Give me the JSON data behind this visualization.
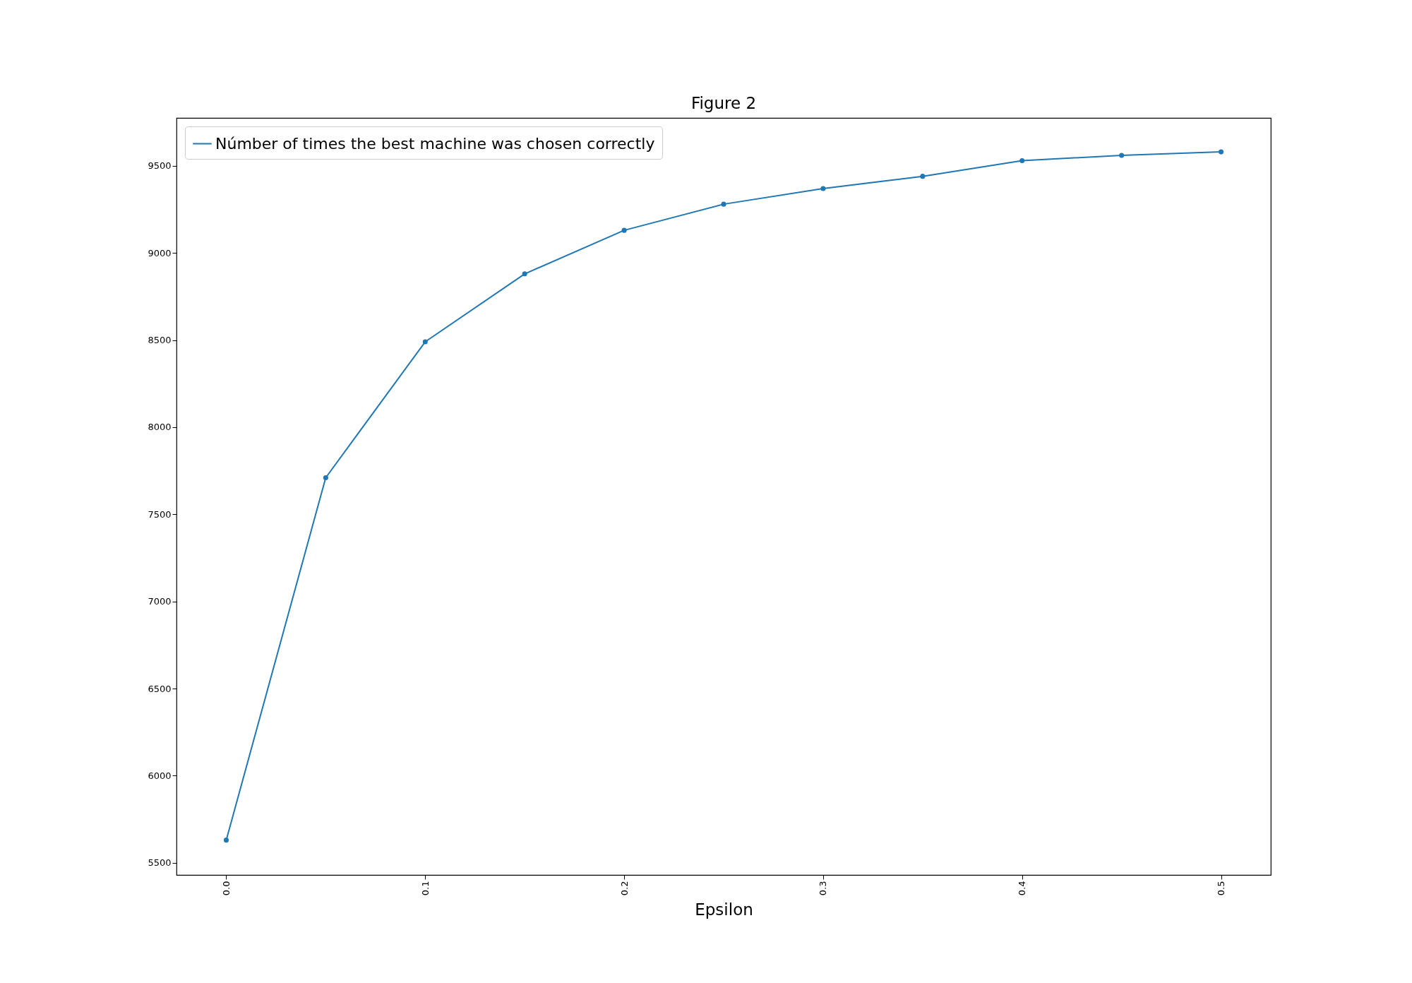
{
  "chart_data": {
    "type": "line",
    "title": "Figure 2",
    "xlabel": "Epsilon",
    "x": [
      0.0,
      0.05,
      0.1,
      0.15,
      0.2,
      0.25,
      0.3,
      0.35,
      0.4,
      0.45,
      0.5
    ],
    "series": [
      {
        "name": "Númber of times the best machine was chosen correctly",
        "color": "#1f77b4",
        "values": [
          5630,
          7710,
          8490,
          8880,
          9130,
          9280,
          9370,
          9440,
          9530,
          9560,
          9580
        ]
      }
    ],
    "xlim": [
      -0.025,
      0.525
    ],
    "xticks": [
      {
        "value": 0,
        "label": "0.0"
      },
      0.1,
      0.2,
      0.3,
      0.4,
      0.5
    ],
    "ylim": [
      5430,
      9775
    ],
    "yticks": [
      5500,
      6000,
      6500,
      7000,
      7500,
      8000,
      8500,
      9000,
      9500
    ],
    "marker": "circle",
    "line_style": "solid",
    "legend": "top left",
    "grid": false
  }
}
